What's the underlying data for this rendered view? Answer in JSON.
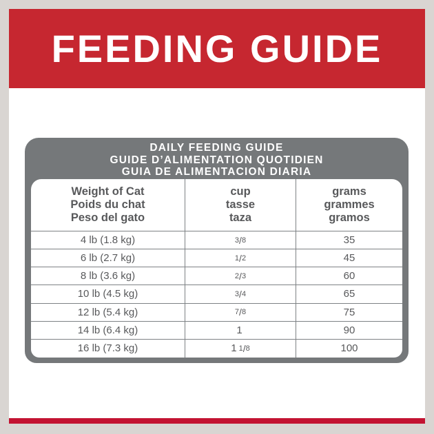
{
  "colors": {
    "page_gray": "#d9d5d2",
    "banner_red": "#c62730",
    "stripe_red": "#c31332",
    "frame_gray": "#75787a",
    "grid_gray": "#7d8184",
    "text_gray": "#58595b"
  },
  "banner": {
    "title": "FEEDING GUIDE"
  },
  "table": {
    "title_lines": [
      "DAILY FEEDING GUIDE",
      "GUIDE D’ALIMENTATION QUOTIDIEN",
      "GUIA DE ALIMENTACION DIARIA"
    ],
    "columns": [
      {
        "lines": [
          "Weight of Cat",
          "Poids du chat",
          "Peso del gato"
        ]
      },
      {
        "lines": [
          "cup",
          "tasse",
          "taza"
        ]
      },
      {
        "lines": [
          "grams",
          "grammes",
          "gramos"
        ]
      }
    ],
    "rows": [
      {
        "weight": "4 lb (1.8 kg)",
        "cup": {
          "whole": "",
          "num": "3",
          "den": "8"
        },
        "grams": "35"
      },
      {
        "weight": "6 lb (2.7 kg)",
        "cup": {
          "whole": "",
          "num": "1",
          "den": "2"
        },
        "grams": "45"
      },
      {
        "weight": "8 lb (3.6 kg)",
        "cup": {
          "whole": "",
          "num": "2",
          "den": "3"
        },
        "grams": "60"
      },
      {
        "weight": "10 lb (4.5 kg)",
        "cup": {
          "whole": "",
          "num": "3",
          "den": "4"
        },
        "grams": "65"
      },
      {
        "weight": "12 lb (5.4 kg)",
        "cup": {
          "whole": "",
          "num": "7",
          "den": "8"
        },
        "grams": "75"
      },
      {
        "weight": "14 lb (6.4 kg)",
        "cup": {
          "whole": "1",
          "num": "",
          "den": ""
        },
        "grams": "90"
      },
      {
        "weight": "16 lb (7.3 kg)",
        "cup": {
          "whole": "1",
          "num": "1",
          "den": "8"
        },
        "grams": "100"
      }
    ]
  }
}
